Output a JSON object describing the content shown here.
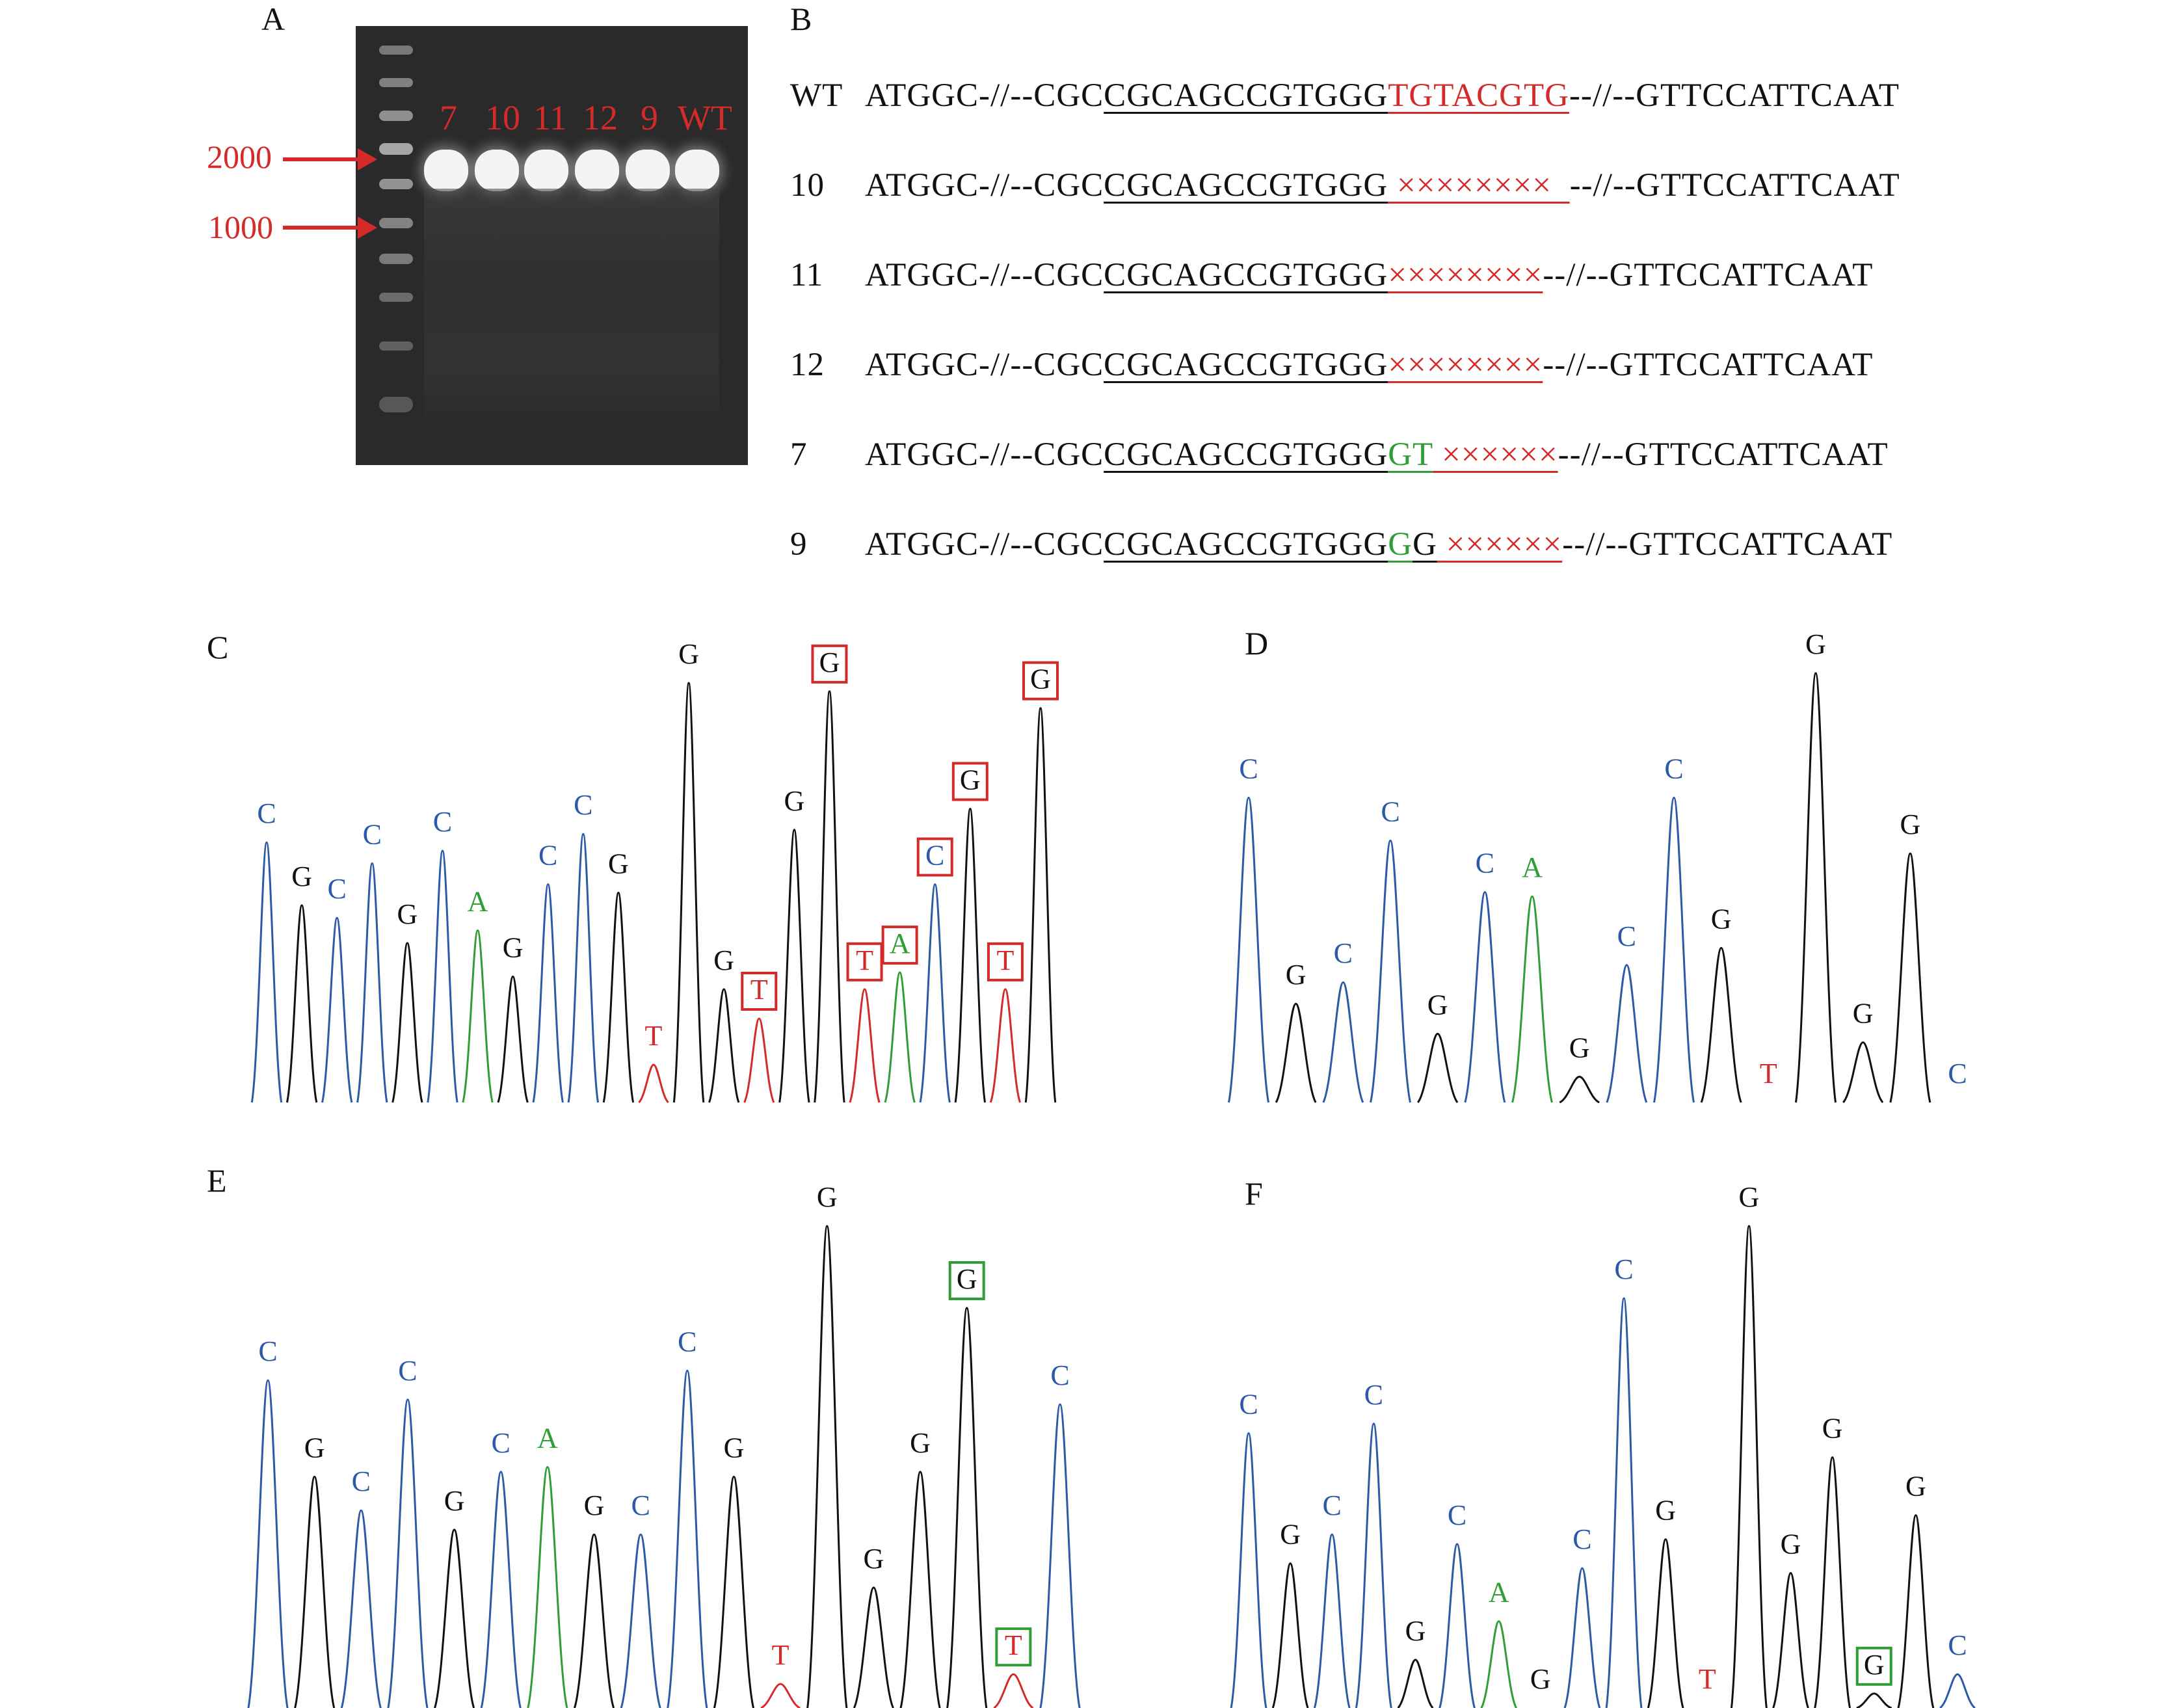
{
  "panels": {
    "a": "A",
    "b": "B",
    "c": "C",
    "d": "D",
    "e": "E",
    "f": "F"
  },
  "gel": {
    "lanes": [
      "7",
      "10",
      "11",
      "12",
      "9",
      "WT"
    ],
    "marker_2000": "2000",
    "marker_1000": "1000",
    "colors": {
      "label": "#d42a2a",
      "background": "#2a2a2a"
    }
  },
  "sequences": {
    "wt": {
      "id": "WT",
      "prefix": "ATGGC-//--CGC",
      "target": "CGCAGCCGTGGG",
      "mid": "TGTACGTG",
      "suffix": "--//--GTTCCATTCAAT"
    },
    "s10": {
      "id": "10",
      "prefix": "ATGGC-//--CGC",
      "target": "CGCAGCCGTGGG",
      "mid": " ××××××××  ",
      "suffix": "--//--GTTCCATTCAAT"
    },
    "s11": {
      "id": "11",
      "prefix": "ATGGC-//--CGC",
      "target": "CGCAGCCGTGGG",
      "mid": "××××××××",
      "suffix": "--//--GTTCCATTCAAT"
    },
    "s12": {
      "id": "12",
      "prefix": "ATGGC-//--CGC",
      "target": "CGCAGCCGTGGG",
      "mid": "××××××××",
      "suffix": "--//--GTTCCATTCAAT"
    },
    "s7": {
      "id": "7",
      "prefix": "ATGGC-//--CGC",
      "target": "CGCAGCCGTGGG",
      "ins": "GT",
      "mid": " ××××××",
      "suffix": "--//--GTTCCATTCAAT"
    },
    "s9": {
      "id": "9",
      "prefix": "ATGGC-//--CGC",
      "target": "CGCAGCCGTGGG",
      "ins": "G",
      "ins2": "G",
      "mid": " ××××××",
      "suffix": "--//--GTTCCATTCAAT"
    }
  },
  "chromatograms": {
    "colors": {
      "C": "#2c5aa8",
      "G": "#111111",
      "A": "#2f9e36",
      "T": "#d42a2a",
      "box_red": "#d42a2a",
      "box_green": "#2f9e36"
    },
    "c": [
      {
        "b": "C",
        "h": 0.62
      },
      {
        "b": "G",
        "h": 0.47
      },
      {
        "b": "C",
        "h": 0.44
      },
      {
        "b": "C",
        "h": 0.57
      },
      {
        "b": "G",
        "h": 0.38
      },
      {
        "b": "C",
        "h": 0.6
      },
      {
        "b": "A",
        "h": 0.41
      },
      {
        "b": "G",
        "h": 0.3
      },
      {
        "b": "C",
        "h": 0.52
      },
      {
        "b": "C",
        "h": 0.64
      },
      {
        "b": "G",
        "h": 0.5
      },
      {
        "b": "T",
        "h": 0.09
      },
      {
        "b": "G",
        "h": 1.0
      },
      {
        "b": "G",
        "h": 0.27
      },
      {
        "b": "T",
        "h": 0.2,
        "box": "red"
      },
      {
        "b": "G",
        "h": 0.65
      },
      {
        "b": "G",
        "h": 0.98,
        "box": "red"
      },
      {
        "b": "T",
        "h": 0.27,
        "box": "red"
      },
      {
        "b": "A",
        "h": 0.31,
        "box": "red"
      },
      {
        "b": "C",
        "h": 0.52,
        "box": "red"
      },
      {
        "b": "G",
        "h": 0.7,
        "box": "red"
      },
      {
        "b": "T",
        "h": 0.27,
        "box": "red"
      },
      {
        "b": "G",
        "h": 0.94,
        "box": "red"
      }
    ],
    "d": [
      {
        "b": "C",
        "h": 0.71
      },
      {
        "b": "G",
        "h": 0.23
      },
      {
        "b": "C",
        "h": 0.28
      },
      {
        "b": "C",
        "h": 0.61
      },
      {
        "b": "G",
        "h": 0.16
      },
      {
        "b": "C",
        "h": 0.49
      },
      {
        "b": "A",
        "h": 0.48
      },
      {
        "b": "G",
        "h": 0.06
      },
      {
        "b": "C",
        "h": 0.32
      },
      {
        "b": "C",
        "h": 0.71
      },
      {
        "b": "G",
        "h": 0.36
      },
      {
        "b": "T",
        "h": 0.0
      },
      {
        "b": "G",
        "h": 1.0
      },
      {
        "b": "G",
        "h": 0.14
      },
      {
        "b": "G",
        "h": 0.58
      },
      {
        "b": "C",
        "h": 0.0
      }
    ],
    "e": [
      {
        "b": "C",
        "h": 0.68
      },
      {
        "b": "G",
        "h": 0.48
      },
      {
        "b": "C",
        "h": 0.41
      },
      {
        "b": "C",
        "h": 0.64
      },
      {
        "b": "G",
        "h": 0.37
      },
      {
        "b": "C",
        "h": 0.49
      },
      {
        "b": "A",
        "h": 0.5
      },
      {
        "b": "G",
        "h": 0.36
      },
      {
        "b": "C",
        "h": 0.36
      },
      {
        "b": "C",
        "h": 0.7
      },
      {
        "b": "G",
        "h": 0.48
      },
      {
        "b": "T",
        "h": 0.05
      },
      {
        "b": "G",
        "h": 1.0
      },
      {
        "b": "G",
        "h": 0.25
      },
      {
        "b": "G",
        "h": 0.49
      },
      {
        "b": "G",
        "h": 0.83,
        "box": "green"
      },
      {
        "b": "T",
        "h": 0.07,
        "box": "green"
      },
      {
        "b": "C",
        "h": 0.63
      }
    ],
    "f": [
      {
        "b": "C",
        "h": 0.57
      },
      {
        "b": "G",
        "h": 0.3
      },
      {
        "b": "C",
        "h": 0.36
      },
      {
        "b": "C",
        "h": 0.59
      },
      {
        "b": "G",
        "h": 0.1
      },
      {
        "b": "C",
        "h": 0.34
      },
      {
        "b": "A",
        "h": 0.18
      },
      {
        "b": "G",
        "h": 0.0
      },
      {
        "b": "C",
        "h": 0.29
      },
      {
        "b": "C",
        "h": 0.85
      },
      {
        "b": "G",
        "h": 0.35
      },
      {
        "b": "T",
        "h": 0.0
      },
      {
        "b": "G",
        "h": 1.0
      },
      {
        "b": "G",
        "h": 0.28
      },
      {
        "b": "G",
        "h": 0.52
      },
      {
        "b": "G",
        "h": 0.03,
        "box": "green"
      },
      {
        "b": "G",
        "h": 0.4
      },
      {
        "b": "C",
        "h": 0.07
      }
    ]
  }
}
